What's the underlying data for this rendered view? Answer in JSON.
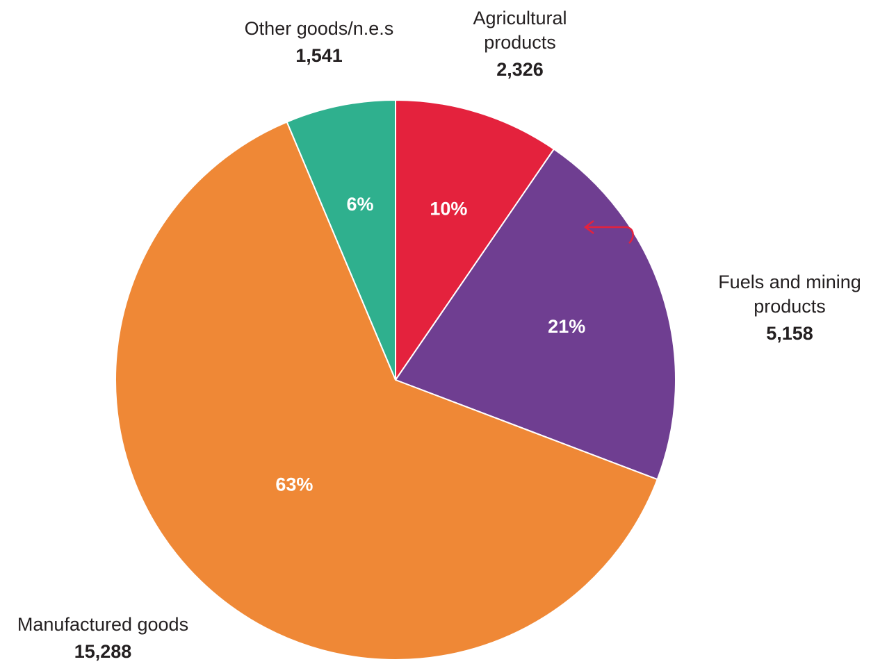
{
  "chart_data": {
    "type": "pie",
    "slices": [
      {
        "label_lines": [
          "Agricultural",
          "products"
        ],
        "value": 2326,
        "value_text": "2,326",
        "percent_text": "10%",
        "color": "#e4223d"
      },
      {
        "label_lines": [
          "Fuels and mining",
          "products"
        ],
        "value": 5158,
        "value_text": "5,158",
        "percent_text": "21%",
        "color": "#6f3e91"
      },
      {
        "label_lines": [
          "Manufactured goods"
        ],
        "value": 15288,
        "value_text": "15,288",
        "percent_text": "63%",
        "color": "#ef8836"
      },
      {
        "label_lines": [
          "Other goods/n.e.s"
        ],
        "value": 1541,
        "value_text": "1,541",
        "percent_text": "6%",
        "color": "#2fb08e"
      }
    ],
    "annotation": {
      "type": "arrow",
      "color": "#e4223d"
    }
  }
}
